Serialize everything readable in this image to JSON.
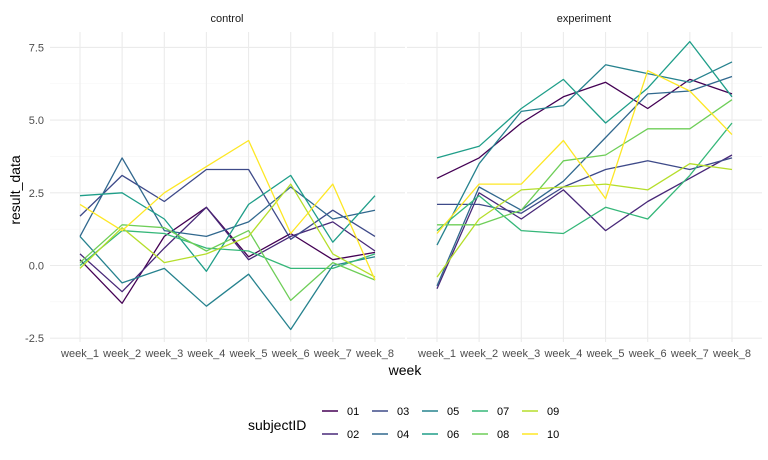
{
  "chart_data": {
    "type": "line",
    "facet_labels": [
      "control",
      "experiment"
    ],
    "xlabel": "week",
    "ylabel": "result_data",
    "categories": [
      "week_1",
      "week_2",
      "week_3",
      "week_4",
      "week_5",
      "week_6",
      "week_7",
      "week_8"
    ],
    "yticks": [
      "-2.5",
      "0.0",
      "2.5",
      "5.0",
      "7.5"
    ],
    "ylim": [
      -2.6,
      7.9
    ],
    "legend": {
      "title": "subjectID",
      "position": "bottom"
    },
    "subjects": [
      "01",
      "02",
      "03",
      "04",
      "05",
      "06",
      "07",
      "08",
      "09",
      "10"
    ],
    "colors": [
      "#440154",
      "#482878",
      "#3e4a89",
      "#31688e",
      "#26828e",
      "#1f9e89",
      "#35b779",
      "#6ece58",
      "#b5de2b",
      "#fde725"
    ],
    "series": {
      "control": [
        {
          "name": "01",
          "values": [
            0.2,
            -1.3,
            1.0,
            2.0,
            0.3,
            1.1,
            0.2,
            0.45
          ]
        },
        {
          "name": "02",
          "values": [
            0.4,
            -0.9,
            0.6,
            2.0,
            0.2,
            1.0,
            1.5,
            0.5
          ]
        },
        {
          "name": "03",
          "values": [
            1.7,
            3.1,
            2.2,
            3.3,
            3.3,
            0.9,
            1.9,
            1.0
          ]
        },
        {
          "name": "04",
          "values": [
            1.0,
            3.7,
            1.2,
            1.0,
            1.5,
            2.7,
            1.6,
            1.9
          ]
        },
        {
          "name": "05",
          "values": [
            1.0,
            -0.6,
            -0.1,
            -1.4,
            -0.3,
            -2.2,
            0.0,
            0.3
          ]
        },
        {
          "name": "06",
          "values": [
            2.4,
            2.5,
            1.6,
            -0.2,
            2.1,
            3.1,
            0.8,
            2.4
          ]
        },
        {
          "name": "07",
          "values": [
            0.0,
            1.2,
            1.1,
            0.6,
            0.5,
            -0.1,
            -0.1,
            0.4
          ]
        },
        {
          "name": "08",
          "values": [
            0.1,
            1.4,
            1.3,
            0.5,
            1.2,
            -1.2,
            0.1,
            -0.5
          ]
        },
        {
          "name": "09",
          "values": [
            -0.1,
            1.3,
            0.1,
            0.4,
            1.0,
            2.8,
            0.4,
            -0.4
          ]
        },
        {
          "name": "10",
          "values": [
            2.1,
            1.2,
            2.5,
            3.4,
            4.3,
            1.1,
            2.8,
            -0.5
          ]
        }
      ],
      "experiment": [
        {
          "name": "01",
          "values": [
            3.0,
            3.7,
            4.9,
            5.8,
            6.3,
            5.4,
            6.4,
            5.9
          ]
        },
        {
          "name": "02",
          "values": [
            -0.8,
            2.5,
            1.6,
            2.6,
            1.2,
            2.2,
            3.0,
            3.8
          ]
        },
        {
          "name": "03",
          "values": [
            2.1,
            2.1,
            1.8,
            2.7,
            3.3,
            3.6,
            3.3,
            3.7
          ]
        },
        {
          "name": "04",
          "values": [
            -0.7,
            2.7,
            1.9,
            2.9,
            4.4,
            5.9,
            6.0,
            6.5
          ]
        },
        {
          "name": "05",
          "values": [
            0.7,
            3.5,
            5.3,
            5.5,
            6.9,
            6.6,
            6.3,
            7.0
          ]
        },
        {
          "name": "06",
          "values": [
            3.7,
            4.1,
            5.4,
            6.4,
            4.9,
            6.1,
            7.7,
            5.8
          ]
        },
        {
          "name": "07",
          "values": [
            1.2,
            2.4,
            1.2,
            1.1,
            2.0,
            1.6,
            3.1,
            4.9
          ]
        },
        {
          "name": "08",
          "values": [
            1.4,
            1.4,
            1.9,
            3.6,
            3.8,
            4.7,
            4.7,
            5.7
          ]
        },
        {
          "name": "09",
          "values": [
            -0.4,
            1.6,
            2.6,
            2.7,
            2.8,
            2.6,
            3.5,
            3.3
          ]
        },
        {
          "name": "10",
          "values": [
            1.1,
            2.8,
            2.8,
            4.3,
            2.3,
            6.7,
            6.0,
            4.5
          ]
        }
      ]
    }
  }
}
